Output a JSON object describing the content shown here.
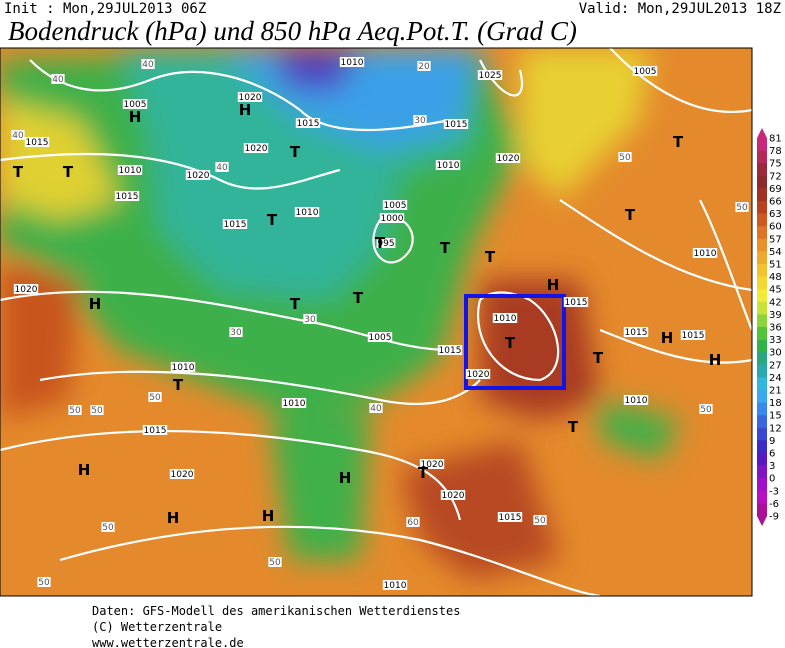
{
  "header": {
    "init": "Init : Mon,29JUL2013 06Z",
    "valid": "Valid: Mon,29JUL2013 18Z",
    "title": "Bodendruck (hPa) und 850 hPa Aeq.Pot.T. (Grad C)"
  },
  "colorbar": {
    "labels": [
      81,
      78,
      75,
      72,
      69,
      66,
      63,
      60,
      57,
      54,
      51,
      48,
      45,
      42,
      39,
      36,
      33,
      30,
      27,
      24,
      21,
      18,
      15,
      12,
      9,
      6,
      3,
      0,
      -3,
      -6,
      -9
    ],
    "colors": [
      "#c8287a",
      "#b4285a",
      "#9a2a3a",
      "#8a2a2a",
      "#a03222",
      "#b8421e",
      "#cc5a1e",
      "#de7426",
      "#e8902c",
      "#eeaa2e",
      "#f2c230",
      "#f4d832",
      "#f0ec38",
      "#c8e43a",
      "#8cd43a",
      "#52c43a",
      "#30b44a",
      "#28a880",
      "#2aa8b0",
      "#30b8dc",
      "#3aa8ee",
      "#3a88ee",
      "#3a66e0",
      "#3a48d0",
      "#3a2ac8",
      "#5a18c0",
      "#8014c0",
      "#a010c8",
      "#b810c0",
      "#a81098"
    ]
  },
  "map": {
    "pressure_labels": [
      "1010",
      "1020",
      "1005",
      "1015",
      "1010",
      "1015",
      "1020",
      "1020",
      "1015",
      "1010",
      "1015",
      "1005",
      "1000",
      "1015",
      "1025",
      "1005",
      "1010",
      "1020",
      "995",
      "1020",
      "1005",
      "1015",
      "1010",
      "1020",
      "1015",
      "1010",
      "1015",
      "1015",
      "1010",
      "1010",
      "1015",
      "1020",
      "1020",
      "1020",
      "1015",
      "1010",
      "1010"
    ],
    "centers": [
      "H",
      "H",
      "T",
      "T",
      "T",
      "T",
      "T",
      "T",
      "T",
      "T",
      "T",
      "T",
      "T",
      "T",
      "T",
      "T",
      "H",
      "H",
      "H",
      "H",
      "H",
      "H",
      "H",
      "H",
      "T",
      "T"
    ],
    "temp_labels": [
      "40",
      "40",
      "20",
      "30",
      "50",
      "50",
      "40",
      "30",
      "50",
      "50",
      "50",
      "50",
      "50",
      "50",
      "60",
      "40",
      "50",
      "50",
      "40",
      "30"
    ]
  },
  "footer": {
    "lines": [
      "Daten: GFS-Modell des amerikanischen Wetterdienstes",
      "(C) Wetterzentrale",
      "www.wetterzentrale.de"
    ]
  }
}
